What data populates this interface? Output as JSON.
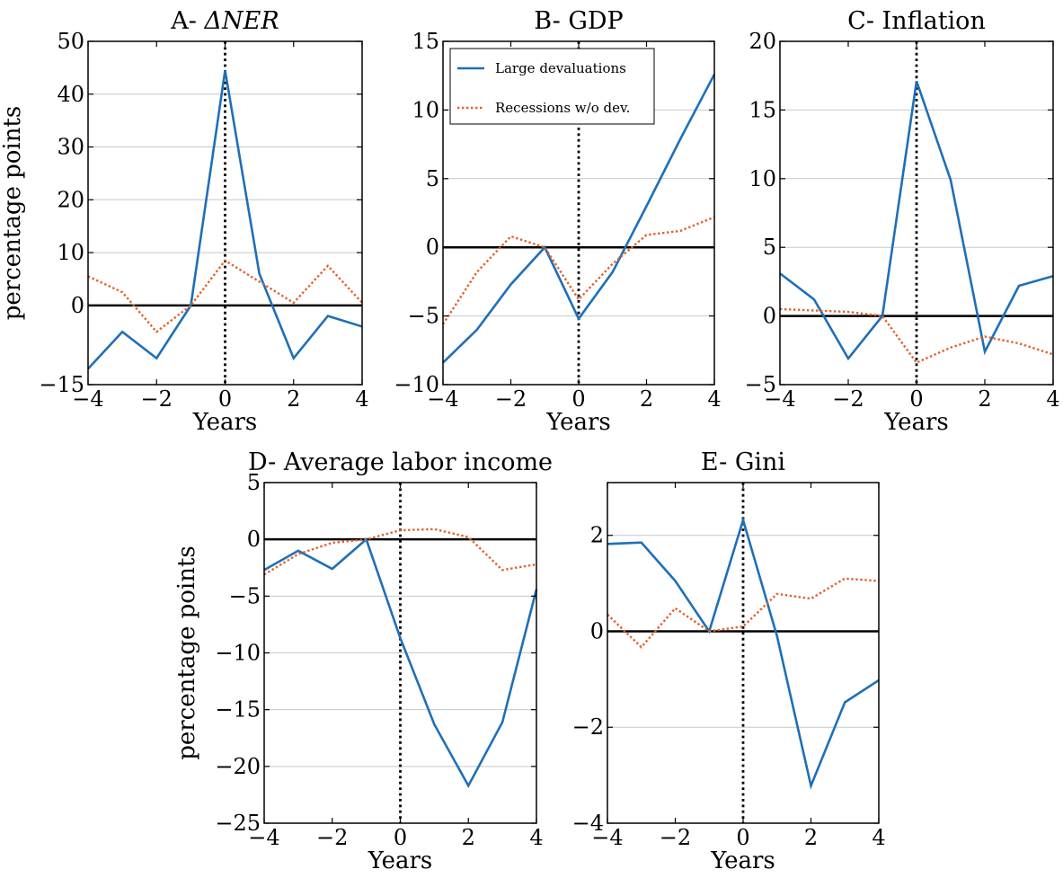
{
  "colors": {
    "large_devaluations": "#1f6fb8",
    "recessions": "#e0622a",
    "grid": "#c8c8c8",
    "zero_line": "#000000"
  },
  "legend": {
    "placement": "top-left of panel B",
    "items": [
      "Large devaluations",
      "Recessions w/o dev."
    ]
  },
  "chart_data": [
    {
      "type": "line",
      "title_prefix": "A- ",
      "title_math": "ΔNER",
      "title": "",
      "xlabel": "Years",
      "ylabel": "percentage points",
      "x": [
        -4,
        -3,
        -2,
        -1,
        0,
        1,
        2,
        3,
        4
      ],
      "xlim": [
        -4,
        4
      ],
      "ylim": [
        -15,
        50
      ],
      "xticks": [
        "−4",
        "−2",
        "0",
        "2",
        "4"
      ],
      "xtick_values": [
        -4,
        -2,
        0,
        2,
        4
      ],
      "yticks": [
        "−15",
        "0",
        "10",
        "20",
        "30",
        "40",
        "50"
      ],
      "ytick_values": [
        -15,
        0,
        10,
        20,
        30,
        40,
        50
      ],
      "grid": true,
      "vline_x": 0,
      "series": [
        {
          "name": "Large devaluations",
          "style": "solid",
          "values": [
            -12,
            -5,
            -10,
            0,
            44.5,
            6,
            -10,
            -2,
            -4
          ]
        },
        {
          "name": "Recessions w/o dev.",
          "style": "dotted",
          "values": [
            5.5,
            2.5,
            -5,
            0,
            8.5,
            4.5,
            0.5,
            7.5,
            0.5
          ]
        }
      ]
    },
    {
      "type": "line",
      "title": "B- GDP",
      "xlabel": "Years",
      "ylabel": "",
      "x": [
        -4,
        -3,
        -2,
        -1,
        0,
        1,
        2,
        3,
        4
      ],
      "xlim": [
        -4,
        4
      ],
      "ylim": [
        -10,
        15
      ],
      "xticks": [
        "−4",
        "−2",
        "0",
        "2",
        "4"
      ],
      "xtick_values": [
        -4,
        -2,
        0,
        2,
        4
      ],
      "yticks": [
        "−10",
        "−5",
        "0",
        "5",
        "10",
        "15"
      ],
      "ytick_values": [
        -10,
        -5,
        0,
        5,
        10,
        15
      ],
      "grid": true,
      "vline_x": 0,
      "show_legend": true,
      "series": [
        {
          "name": "Large devaluations",
          "style": "solid",
          "values": [
            -8.4,
            -6,
            -2.7,
            0,
            -5.2,
            -1.8,
            3,
            7.9,
            12.6
          ]
        },
        {
          "name": "Recessions w/o dev.",
          "style": "dotted",
          "values": [
            -5.6,
            -1.8,
            0.8,
            0,
            -3.8,
            -1.2,
            0.9,
            1.2,
            2.2
          ]
        }
      ]
    },
    {
      "type": "line",
      "title": "C- Inflation",
      "xlabel": "Years",
      "ylabel": "",
      "x": [
        -4,
        -3,
        -2,
        -1,
        0,
        1,
        2,
        3,
        4
      ],
      "xlim": [
        -4,
        4
      ],
      "ylim": [
        -5,
        20
      ],
      "xticks": [
        "−4",
        "−2",
        "0",
        "2",
        "4"
      ],
      "xtick_values": [
        -4,
        -2,
        0,
        2,
        4
      ],
      "yticks": [
        "−5",
        "0",
        "5",
        "10",
        "15",
        "20"
      ],
      "ytick_values": [
        -5,
        0,
        5,
        10,
        15,
        20
      ],
      "grid": true,
      "vline_x": 0,
      "series": [
        {
          "name": "Large devaluations",
          "style": "solid",
          "values": [
            3.1,
            1.2,
            -3.1,
            0,
            17.1,
            9.9,
            -2.6,
            2.2,
            2.9
          ]
        },
        {
          "name": "Recessions w/o dev.",
          "style": "dotted",
          "values": [
            0.5,
            0.4,
            0.3,
            0,
            -3.4,
            -2.3,
            -1.5,
            -2,
            -2.8
          ]
        }
      ]
    },
    {
      "type": "line",
      "title": "D- Average labor income",
      "xlabel": "Years",
      "ylabel": "percentage points",
      "x": [
        -4,
        -3,
        -2,
        -1,
        0,
        1,
        2,
        3,
        4
      ],
      "xlim": [
        -4,
        4
      ],
      "ylim": [
        -25,
        5
      ],
      "xticks": [
        "−4",
        "−2",
        "0",
        "2",
        "4"
      ],
      "xtick_values": [
        -4,
        -2,
        0,
        2,
        4
      ],
      "yticks": [
        "−25",
        "−20",
        "−15",
        "−10",
        "−5",
        "0",
        "5"
      ],
      "ytick_values": [
        -25,
        -20,
        -15,
        -10,
        -5,
        0,
        5
      ],
      "grid": true,
      "vline_x": 0,
      "series": [
        {
          "name": "Large devaluations",
          "style": "solid",
          "values": [
            -2.7,
            -1,
            -2.6,
            0,
            -8.7,
            -16.3,
            -21.7,
            -16.1,
            -4.4
          ]
        },
        {
          "name": "Recessions w/o dev.",
          "style": "dotted",
          "values": [
            -3.1,
            -1.3,
            -0.3,
            0,
            0.8,
            0.9,
            0.2,
            -2.7,
            -2.2
          ]
        }
      ]
    },
    {
      "type": "line",
      "title": "E- Gini",
      "xlabel": "Years",
      "ylabel": "",
      "x": [
        -4,
        -3,
        -2,
        -1,
        0,
        1,
        2,
        3,
        4
      ],
      "xlim": [
        -4,
        4
      ],
      "ylim": [
        -4,
        3.1
      ],
      "xticks": [
        "−4",
        "−2",
        "0",
        "2",
        "4"
      ],
      "xtick_values": [
        -4,
        -2,
        0,
        2,
        4
      ],
      "yticks": [
        "−4",
        "−2",
        "0",
        "2"
      ],
      "ytick_values": [
        -4,
        -2,
        0,
        2
      ],
      "grid": true,
      "vline_x": 0,
      "series": [
        {
          "name": "Large devaluations",
          "style": "solid",
          "values": [
            1.82,
            1.85,
            1.05,
            0,
            2.32,
            -0.1,
            -3.22,
            -1.48,
            -1.02
          ]
        },
        {
          "name": "Recessions w/o dev.",
          "style": "dotted",
          "values": [
            0.35,
            -0.33,
            0.48,
            0,
            0.1,
            0.78,
            0.68,
            1.1,
            1.05
          ]
        }
      ]
    }
  ]
}
